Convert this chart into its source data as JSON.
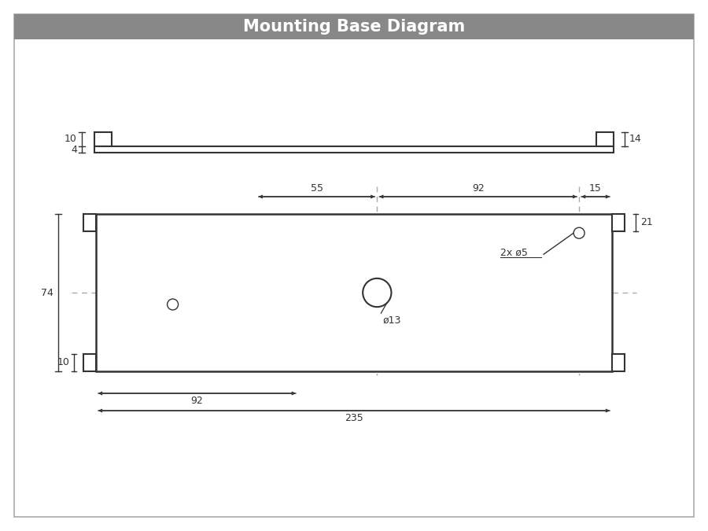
{
  "title": "Mounting Base Diagram",
  "title_bg": "#888888",
  "title_color": "#ffffff",
  "title_fontsize": 15,
  "border_color": "#aaaaaa",
  "line_color": "#333333",
  "dim_color": "#333333",
  "dashed_color": "#aaaaaa",
  "bg_color": "#ffffff",
  "annotations": {
    "d13": "ø13",
    "d5": "2x ø5",
    "dim_10_side": "10",
    "dim_4_side": "4",
    "dim_14_right": "14",
    "dim_74_left": "74",
    "dim_10_notch": "10",
    "dim_21_right": "21",
    "dim_55_top": "55",
    "dim_92_top": "92",
    "dim_15_top": "15",
    "dim_92_bottom": "92",
    "dim_235_bottom": "235"
  }
}
